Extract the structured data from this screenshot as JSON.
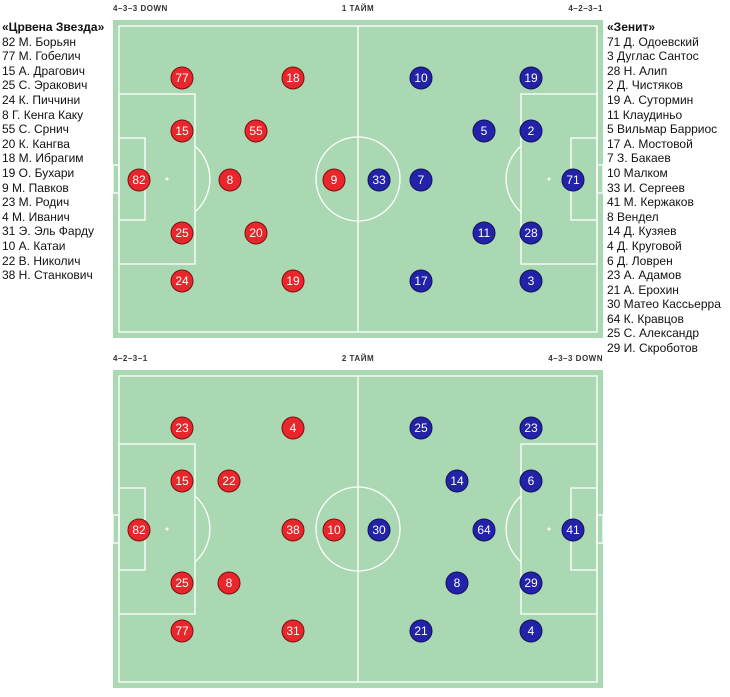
{
  "home": {
    "title": "«Црвена Звезда»",
    "players": [
      "82 М. Борьян",
      "77 М. Гобелич",
      "15 А. Драгович",
      "25 С. Эракович",
      "24 К. Пиччини",
      "8 Г. Кенга Каку",
      "55 С. Срнич",
      "20 К. Кангва",
      "18 М. Ибрагим",
      "19 О. Бухари",
      "9 М. Павков",
      "23 М. Родич",
      "4 М. Иванич",
      "31 Э. Эль Фарду",
      "10 А. Катаи",
      "22 В. Николич",
      "38 Н. Станкович"
    ]
  },
  "away": {
    "title": "«Зенит»",
    "players": [
      "71 Д. Одоевский",
      "3 Дуглас Сантос",
      "28 Н. Алип",
      "2 Д. Чистяков",
      "19 А. Сутормин",
      "11 Клаудиньо",
      "5 Вильмар Барриос",
      "17 А. Мостовой",
      "7 З. Бакаев",
      "10 Малком",
      "33 И. Сергеев",
      "41 М. Кержаков",
      "8 Вендел",
      "14 Д. Кузяев",
      "4 Д. Круговой",
      "6 Д. Ловрен",
      "23 А. Адамов",
      "21 А. Ерохин",
      "30 Матео Кассьерра",
      "64 К. Кравцов",
      "25 С. Александр",
      "29 И. Скроботов"
    ]
  },
  "fields": [
    {
      "left_formation": "4–3–3 DOWN",
      "period": "1 ТАЙМ",
      "right_formation": "4–2–3–1",
      "home_numbers": [
        "77",
        "18",
        "15",
        "55",
        "82",
        "8",
        "9",
        "25",
        "20",
        "24",
        "19"
      ],
      "away_numbers": [
        "10",
        "19",
        "5",
        "2",
        "33",
        "7",
        "71",
        "11",
        "28",
        "17",
        "3"
      ]
    },
    {
      "left_formation": "4–2–3–1",
      "period": "2 ТАЙМ",
      "right_formation": "4–3–3 DOWN",
      "home_numbers": [
        "23",
        "4",
        "15",
        "22",
        "82",
        "38",
        "10",
        "25",
        "8",
        "77",
        "31"
      ],
      "away_numbers": [
        "25",
        "23",
        "14",
        "6",
        "30",
        "64",
        "41",
        "8",
        "29",
        "21",
        "4"
      ]
    }
  ]
}
